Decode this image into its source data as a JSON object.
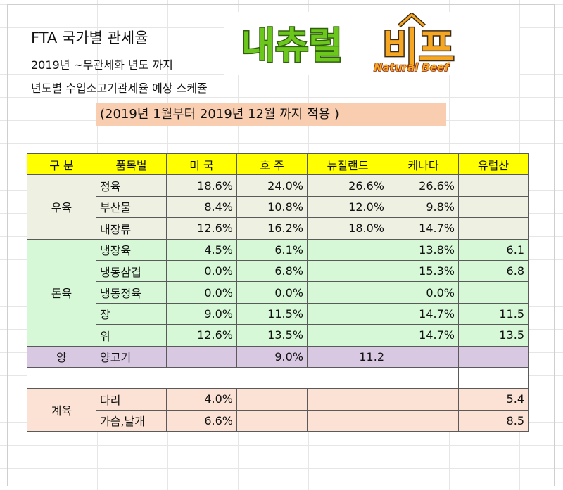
{
  "header": {
    "title": "FTA 국가별 관세율",
    "subtitle1": "2019년 ~무관세화 년도 까지",
    "subtitle2": "년도별 수입소고기관세율 예상 스케쥴",
    "banner": "(2019년 1월부터 2019년 12월 까지 적용 )"
  },
  "logo": {
    "korean_text": "내츄럴비프",
    "english_text": "Natural Beef",
    "colors": {
      "green": "#6cc71d",
      "orange": "#f5a623",
      "red": "#d0021b",
      "dark": "#3a2a1a"
    }
  },
  "table": {
    "headers": [
      "구 분",
      "품목별",
      "미 국",
      "호 주",
      "뉴질랜드",
      "케나다",
      "유럽산"
    ],
    "colors": {
      "header": "#ffff00",
      "beef": "#eef0e2",
      "pork": "#d6f8d6",
      "lamb": "#d8c8e2",
      "chicken": "#fbe2d4",
      "border": "#5a5a5a"
    },
    "groups": [
      {
        "category": "우육",
        "rows": [
          {
            "item": "정육",
            "us": "18.6%",
            "au": "24.0%",
            "nz": "26.6%",
            "ca": "26.6%",
            "eu": ""
          },
          {
            "item": "부산물",
            "us": "8.4%",
            "au": "10.8%",
            "nz": "12.0%",
            "ca": "9.8%",
            "eu": ""
          },
          {
            "item": "내장류",
            "us": "12.6%",
            "au": "16.2%",
            "nz": "18.0%",
            "ca": "14.7%",
            "eu": ""
          }
        ]
      },
      {
        "category": "돈육",
        "rows": [
          {
            "item": "냉장육",
            "us": "4.5%",
            "au": "6.1%",
            "nz": "",
            "ca": "13.8%",
            "eu": "6.1"
          },
          {
            "item": "냉동삼겹",
            "us": "0.0%",
            "au": "6.8%",
            "nz": "",
            "ca": "15.3%",
            "eu": "6.8"
          },
          {
            "item": "냉동정육",
            "us": "0.0%",
            "au": "0.0%",
            "nz": "",
            "ca": "0.0%",
            "eu": ""
          },
          {
            "item": "장",
            "us": "9.0%",
            "au": "11.5%",
            "nz": "",
            "ca": "14.7%",
            "eu": "11.5"
          },
          {
            "item": "위",
            "us": "12.6%",
            "au": "13.5%",
            "nz": "",
            "ca": "14.7%",
            "eu": "13.5"
          }
        ]
      },
      {
        "category": "양",
        "rows": [
          {
            "item": "양고기",
            "us": "",
            "au": "9.0%",
            "nz": "11.2",
            "ca": "",
            "eu": ""
          }
        ]
      },
      {
        "category": "계육",
        "rows": [
          {
            "item": "다리",
            "us": "4.0%",
            "au": "",
            "nz": "",
            "ca": "",
            "eu": "5.4"
          },
          {
            "item": "가슴,날개",
            "us": "6.6%",
            "au": "",
            "nz": "",
            "ca": "",
            "eu": "8.5"
          }
        ]
      }
    ]
  }
}
